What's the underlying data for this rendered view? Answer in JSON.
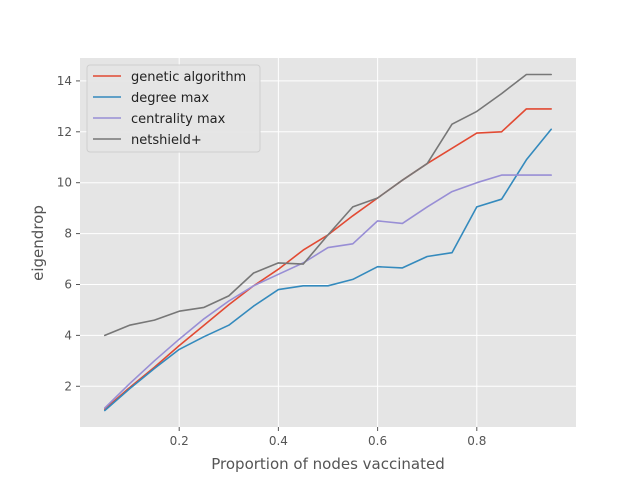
{
  "chart_data": {
    "type": "line",
    "title": "",
    "xlabel": "Proportion of nodes vaccinated",
    "ylabel": "eigendrop",
    "xlim": [
      0.0,
      1.0
    ],
    "ylim": [
      0.4,
      14.9
    ],
    "grid": true,
    "legend_position": "top-left",
    "x_ticks": [
      0.2,
      0.4,
      0.6,
      0.8
    ],
    "x_tick_labels": [
      "0.2",
      "0.4",
      "0.6",
      "0.8"
    ],
    "y_ticks": [
      2,
      4,
      6,
      8,
      10,
      12,
      14
    ],
    "y_tick_labels": [
      "2",
      "4",
      "6",
      "8",
      "10",
      "12",
      "14"
    ],
    "x": [
      0.05,
      0.1,
      0.15,
      0.2,
      0.25,
      0.3,
      0.35,
      0.4,
      0.45,
      0.5,
      0.55,
      0.6,
      0.65,
      0.7,
      0.75,
      0.8,
      0.85,
      0.9,
      0.95
    ],
    "series": [
      {
        "name": "genetic algorithm",
        "color": "#E24A33",
        "values": [
          1.1,
          1.95,
          2.75,
          3.6,
          4.4,
          5.2,
          5.95,
          6.6,
          7.35,
          7.95,
          8.7,
          9.4,
          10.1,
          10.75,
          11.35,
          11.95,
          12.0,
          12.9,
          12.9
        ]
      },
      {
        "name": "degree max",
        "color": "#348ABD",
        "values": [
          1.05,
          1.9,
          2.7,
          3.45,
          3.95,
          4.4,
          5.15,
          5.8,
          5.95,
          5.95,
          6.2,
          6.7,
          6.65,
          7.1,
          7.25,
          9.05,
          9.35,
          10.9,
          12.1
        ]
      },
      {
        "name": "centrality max",
        "color": "#988ED5",
        "values": [
          1.15,
          2.1,
          3.0,
          3.85,
          4.65,
          5.35,
          5.95,
          6.4,
          6.85,
          7.45,
          7.6,
          8.5,
          8.4,
          9.05,
          9.65,
          10.0,
          10.3,
          10.3,
          10.3
        ]
      },
      {
        "name": "netshield+",
        "color": "#777777",
        "values": [
          4.0,
          4.4,
          4.6,
          4.95,
          5.1,
          5.55,
          6.45,
          6.85,
          6.8,
          7.95,
          9.05,
          9.4,
          10.1,
          10.75,
          12.3,
          12.8,
          13.5,
          14.25,
          14.25
        ]
      }
    ]
  }
}
